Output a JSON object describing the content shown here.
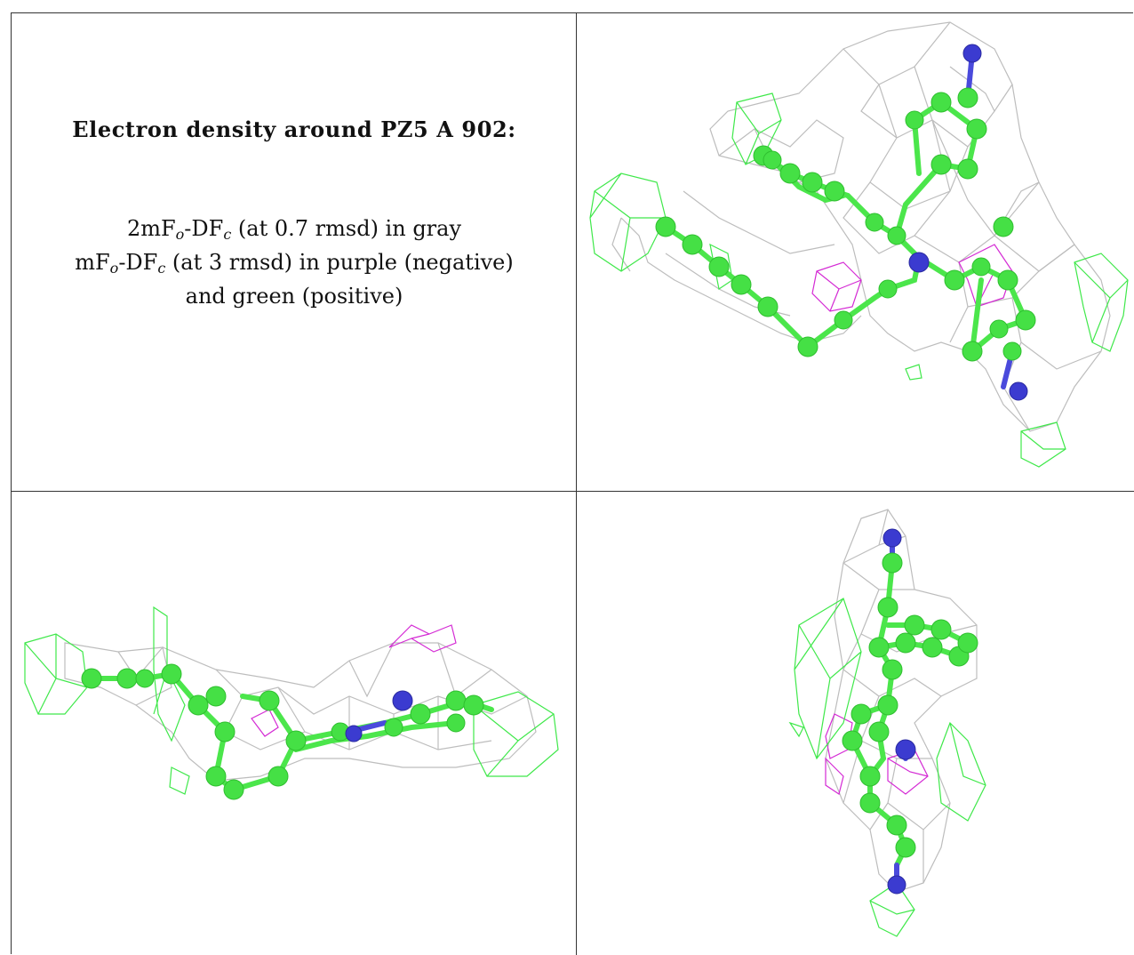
{
  "caption": {
    "title": "Electron density around PZ5 A 902:",
    "line1": {
      "prefix": "2mF",
      "sub1": "o",
      "mid": "-DF",
      "sub2": "c",
      "suffix": " (at 0.7 rmsd) in gray"
    },
    "line2": {
      "prefix": "mF",
      "sub1": "o",
      "mid": "-DF",
      "sub2": "c",
      "suffix": " (at 3 rmsd) in purple (negative)"
    },
    "line3": "and green (positive)"
  },
  "colors": {
    "ligand_carbon": "#45e045",
    "ligand_nitrogen": "#3b3bd0",
    "map_2fofc": "#bdbdbd",
    "map_fofc_negative": "#d42ad4",
    "map_fofc_positive": "#3fe84a"
  }
}
